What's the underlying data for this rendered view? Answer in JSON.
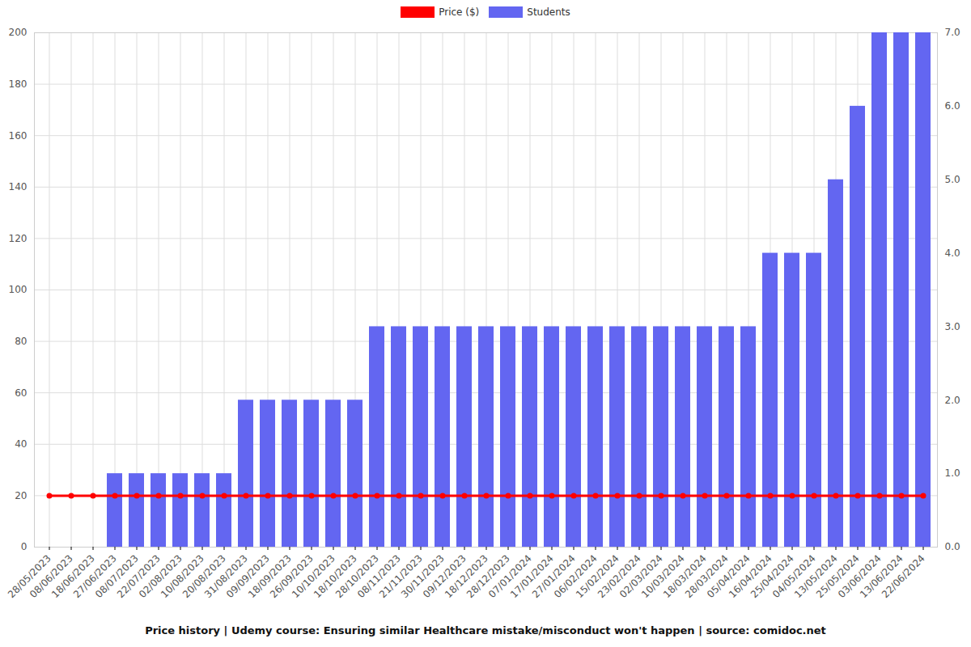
{
  "chart_data": {
    "type": "bar",
    "title": "Price history | Udemy course: Ensuring similar Healthcare mistake/misconduct won't happen | source: comidoc.net",
    "categories": [
      "28/05/2023",
      "08/06/2023",
      "18/06/2023",
      "27/06/2023",
      "08/07/2023",
      "22/07/2023",
      "02/08/2023",
      "10/08/2023",
      "20/08/2023",
      "31/08/2023",
      "09/09/2023",
      "18/09/2023",
      "26/09/2023",
      "10/10/2023",
      "18/10/2023",
      "28/10/2023",
      "08/11/2023",
      "21/11/2023",
      "30/11/2023",
      "09/12/2023",
      "18/12/2023",
      "28/12/2023",
      "07/01/2024",
      "17/01/2024",
      "27/01/2024",
      "06/02/2024",
      "15/02/2024",
      "23/02/2024",
      "02/03/2024",
      "10/03/2024",
      "18/03/2024",
      "28/03/2024",
      "05/04/2024",
      "16/04/2024",
      "25/04/2024",
      "04/05/2024",
      "13/05/2024",
      "25/05/2024",
      "03/06/2024",
      "13/06/2024",
      "22/06/2024"
    ],
    "series": [
      {
        "name": "Price ($)",
        "type": "line",
        "color": "#ff0000",
        "marker": "circle",
        "values": [
          20,
          20,
          20,
          20,
          20,
          20,
          20,
          20,
          20,
          20,
          20,
          20,
          20,
          20,
          20,
          20,
          20,
          20,
          20,
          20,
          20,
          20,
          20,
          20,
          20,
          20,
          20,
          20,
          20,
          20,
          20,
          20,
          20,
          20,
          20,
          20,
          20,
          20,
          20,
          20,
          20
        ]
      },
      {
        "name": "Students",
        "type": "bar",
        "axis": "y2",
        "color": "#6366f1",
        "values": [
          0,
          0,
          0,
          1,
          1,
          1,
          1,
          1,
          1,
          2,
          2,
          2,
          2,
          2,
          2,
          3,
          3,
          3,
          3,
          3,
          3,
          3,
          3,
          3,
          3,
          3,
          3,
          3,
          3,
          3,
          3,
          3,
          3,
          4,
          4,
          4,
          5,
          6,
          7,
          7,
          7
        ]
      }
    ],
    "ylim": [
      0,
      200
    ],
    "yticks": [
      0,
      20,
      40,
      60,
      80,
      100,
      120,
      140,
      160,
      180,
      200
    ],
    "y2lim": [
      0,
      7
    ],
    "y2ticks": [
      0,
      1,
      2,
      3,
      4,
      5,
      6,
      7
    ],
    "grid": true,
    "legend": "top"
  }
}
